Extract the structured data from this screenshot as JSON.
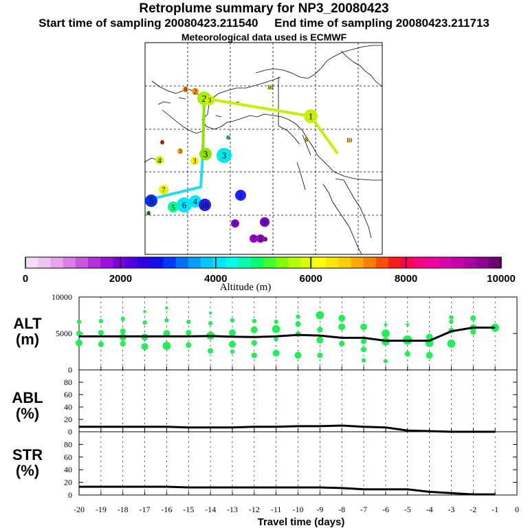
{
  "header": {
    "title": "Retroplume summary for NP3_20080423",
    "sampling_line": "Start time of sampling 20080423.211540     End time of sampling 20080423.211713",
    "met_line": "Meteorological data used is ECMWF"
  },
  "map": {
    "trajectory_labels": [
      "1",
      "2",
      "3",
      "4",
      "5",
      "6",
      "7",
      "8",
      "9",
      "10"
    ]
  },
  "colorbar": {
    "title": "Altitude (m)",
    "min": 0,
    "max": 10000,
    "tick_labels": [
      "0",
      "2000",
      "4000",
      "6000",
      "8000",
      "10000"
    ],
    "colors": [
      "#f4dcf6",
      "#eec4f2",
      "#e6a6ee",
      "#da7ee8",
      "#cc55e2",
      "#b92ddd",
      "#9b10dc",
      "#7a00dc",
      "#5100e3",
      "#2e00e8",
      "#1010f0",
      "#0038ff",
      "#0070ff",
      "#00a0ff",
      "#00c8ff",
      "#00e6ff",
      "#00ffe6",
      "#00ffb0",
      "#00ff70",
      "#40ff30",
      "#80ff00",
      "#b4ff00",
      "#dcff00",
      "#ffff00",
      "#ffe800",
      "#ffd000",
      "#ffaa00",
      "#ff8000",
      "#ff4d00",
      "#ff1a1a",
      "#ff0055",
      "#ff0080",
      "#f000a0",
      "#e000b0",
      "#c800b0",
      "#ad00a6",
      "#8f0090",
      "#700070"
    ]
  },
  "chart_data": [
    {
      "type": "scatter",
      "panel": "ALT",
      "ylabel_lines": [
        "ALT",
        "(m)"
      ],
      "ylim": [
        0,
        10000
      ],
      "y_ticks": [
        "0",
        "5000",
        "10000"
      ],
      "median_line": {
        "x": [
          -20,
          -19,
          -18,
          -17,
          -16,
          -15,
          -14,
          -13,
          -12,
          -11,
          -10,
          -9,
          -8,
          -7,
          -6,
          -5,
          -4,
          -3,
          -2,
          -1
        ],
        "y": [
          4600,
          4600,
          4600,
          4600,
          4600,
          4600,
          4650,
          4550,
          4500,
          4600,
          4800,
          4700,
          4400,
          4400,
          4000,
          4000,
          4000,
          5300,
          5800,
          5800
        ]
      },
      "points": [
        [
          -20,
          6600,
          2
        ],
        [
          -20,
          5000,
          3
        ],
        [
          -20,
          3700,
          4
        ],
        [
          -19,
          6700,
          2
        ],
        [
          -19,
          5100,
          3
        ],
        [
          -19,
          3500,
          3
        ],
        [
          -18,
          7000,
          2
        ],
        [
          -18,
          5300,
          3
        ],
        [
          -18,
          4500,
          4
        ],
        [
          -18,
          3600,
          3
        ],
        [
          -17,
          8000,
          1
        ],
        [
          -17,
          6500,
          2
        ],
        [
          -17,
          4500,
          4
        ],
        [
          -17,
          3200,
          4
        ],
        [
          -16,
          8500,
          1
        ],
        [
          -16,
          6800,
          2
        ],
        [
          -16,
          5000,
          4
        ],
        [
          -16,
          3300,
          5
        ],
        [
          -15,
          6600,
          2
        ],
        [
          -15,
          5100,
          3
        ],
        [
          -15,
          3400,
          3
        ],
        [
          -14,
          7800,
          1
        ],
        [
          -14,
          6400,
          2
        ],
        [
          -14,
          4700,
          5
        ],
        [
          -14,
          2600,
          3
        ],
        [
          -13,
          6800,
          2
        ],
        [
          -13,
          5100,
          4
        ],
        [
          -13,
          3500,
          4
        ],
        [
          -13,
          2500,
          2
        ],
        [
          -12,
          6700,
          2
        ],
        [
          -12,
          5500,
          4
        ],
        [
          -12,
          3700,
          3
        ],
        [
          -12,
          2000,
          3
        ],
        [
          -11,
          6600,
          2
        ],
        [
          -11,
          5600,
          5
        ],
        [
          -11,
          4200,
          2
        ],
        [
          -11,
          2300,
          4
        ],
        [
          -10,
          7300,
          2
        ],
        [
          -10,
          6300,
          3
        ],
        [
          -10,
          4900,
          3
        ],
        [
          -10,
          2000,
          4
        ],
        [
          -9,
          7500,
          5
        ],
        [
          -9,
          5500,
          3
        ],
        [
          -9,
          4100,
          4
        ],
        [
          -9,
          2000,
          3
        ],
        [
          -8,
          7100,
          4
        ],
        [
          -8,
          5900,
          4
        ],
        [
          -8,
          3600,
          3
        ],
        [
          -7,
          5900,
          4
        ],
        [
          -7,
          3900,
          3
        ],
        [
          -7,
          2800,
          3
        ],
        [
          -7,
          1300,
          2
        ],
        [
          -6,
          6200,
          1
        ],
        [
          -6,
          5000,
          5
        ],
        [
          -6,
          3900,
          5
        ],
        [
          -6,
          1200,
          2
        ],
        [
          -5,
          6200,
          1
        ],
        [
          -5,
          4100,
          6
        ],
        [
          -5,
          2200,
          3
        ],
        [
          -4,
          4500,
          4
        ],
        [
          -4,
          3700,
          5
        ],
        [
          -4,
          2000,
          4
        ],
        [
          -3,
          7200,
          2
        ],
        [
          -3,
          6600,
          2
        ],
        [
          -3,
          5400,
          3
        ],
        [
          -3,
          3600,
          5
        ],
        [
          -2,
          7100,
          3
        ],
        [
          -2,
          5800,
          4
        ],
        [
          -2,
          5200,
          3
        ],
        [
          -1,
          5800,
          5
        ]
      ]
    },
    {
      "type": "line",
      "panel": "ABL",
      "ylabel_lines": [
        "ABL",
        "(%)"
      ],
      "ylim": [
        0,
        100
      ],
      "y_ticks": [
        "0",
        "20",
        "40",
        "60",
        "80"
      ],
      "x": [
        -20,
        -19,
        -18,
        -17,
        -16,
        -15,
        -14,
        -13,
        -12,
        -11,
        -10,
        -9,
        -8,
        -7,
        -6,
        -5,
        -4,
        -3,
        -2,
        -1
      ],
      "y": [
        8,
        8,
        8,
        8,
        8,
        7,
        7,
        7,
        8,
        8,
        9,
        9,
        10,
        8,
        7,
        2,
        1,
        0,
        0,
        0
      ]
    },
    {
      "type": "line",
      "panel": "STR",
      "ylabel_lines": [
        "STR",
        "(%)"
      ],
      "ylim": [
        0,
        100
      ],
      "y_ticks": [
        "0",
        "20",
        "40",
        "60",
        "80"
      ],
      "xlabel": "Travel time (days)",
      "x_ticks": [
        "-20",
        "-19",
        "-18",
        "-17",
        "-16",
        "-15",
        "-14",
        "-13",
        "-12",
        "-11",
        "-10",
        "-9",
        "-8",
        "-7",
        "-6",
        "-5",
        "-4",
        "-3",
        "-2",
        "-1",
        "0"
      ],
      "x": [
        -20,
        -19,
        -18,
        -17,
        -16,
        -15,
        -14,
        -13,
        -12,
        -11,
        -10,
        -9,
        -8,
        -7,
        -6,
        -5,
        -4,
        -3,
        -2,
        -1
      ],
      "y": [
        13,
        13,
        13,
        13,
        13,
        12,
        12,
        12,
        12,
        12,
        12,
        12,
        11,
        9,
        9,
        9,
        5,
        3,
        1,
        1
      ]
    }
  ]
}
